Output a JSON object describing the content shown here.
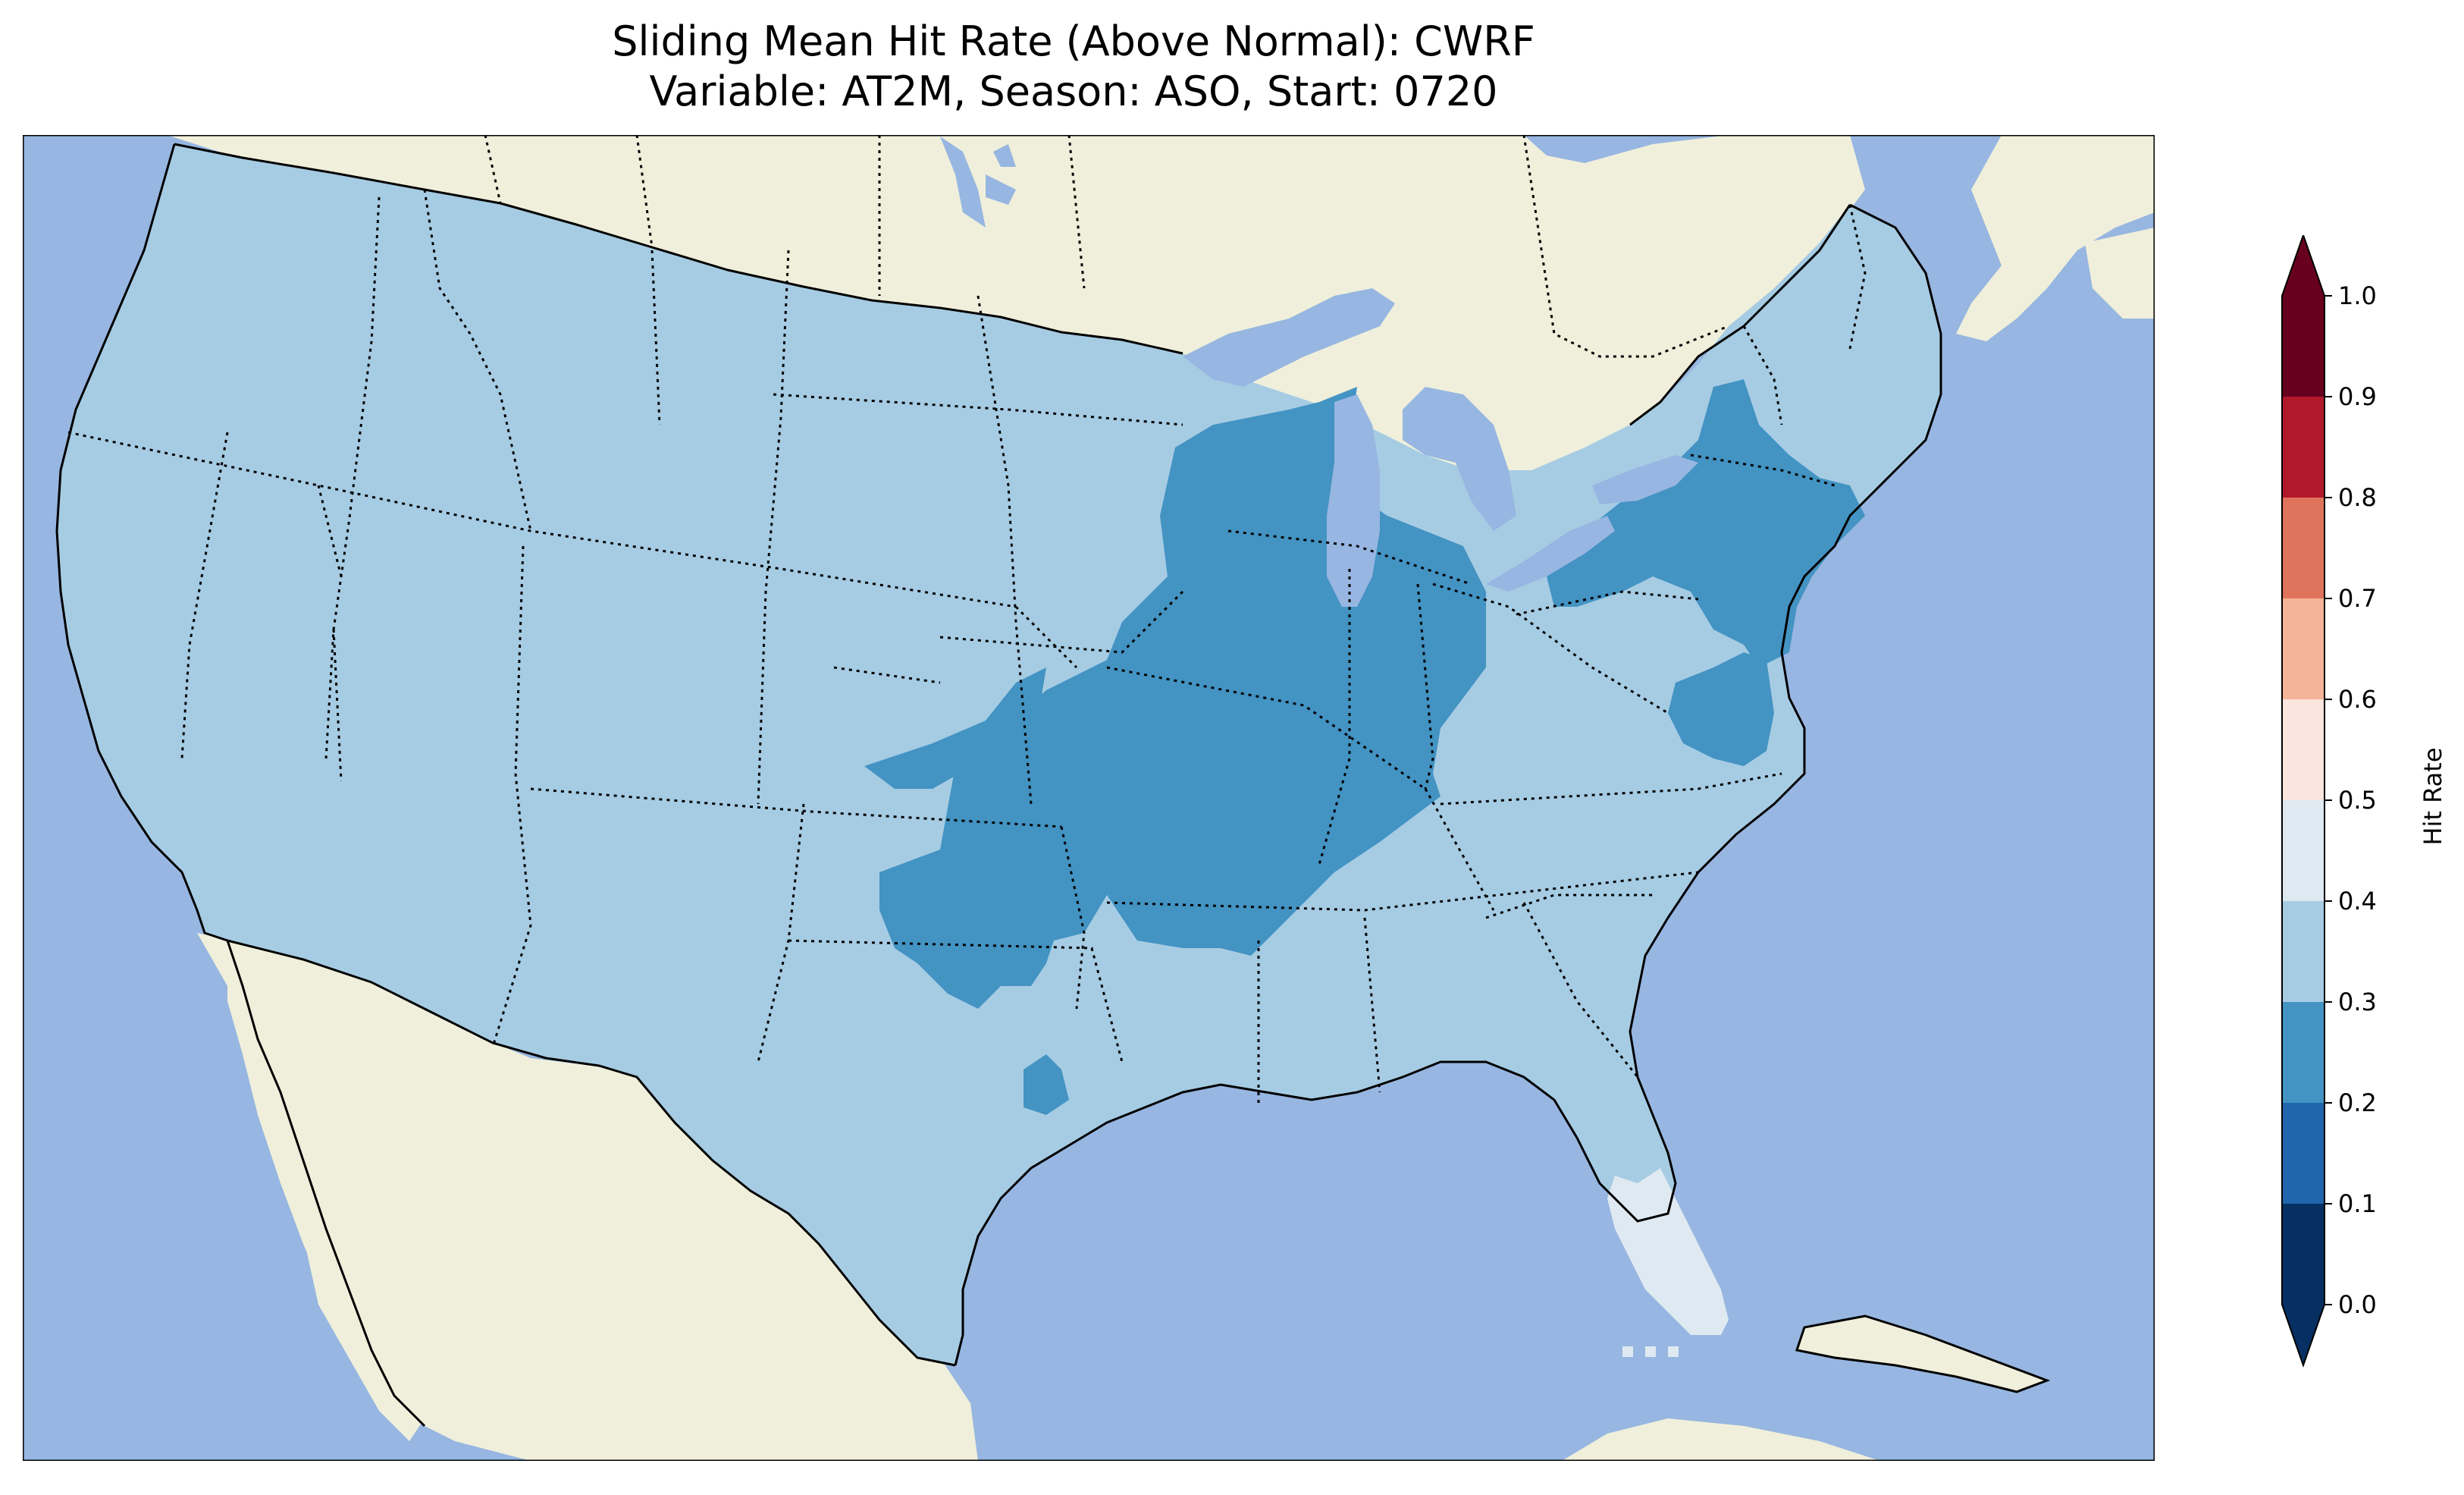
{
  "title": {
    "line1": "Sliding Mean Hit Rate (Above Normal): CWRF",
    "line2": "Variable: AT2M, Season: ASO, Start: 0720"
  },
  "colors": {
    "ocean": "#97b6e1",
    "land": "#efefdb",
    "lakes": "#97b6e1"
  },
  "map_data": {
    "type": "choropleth_grid",
    "region": "Continental United States",
    "dominant_bin": [
      0.3,
      0.4
    ],
    "zones": [
      {
        "name": "Central US (Kansas–Oklahoma–Missouri–Illinois–Indiana)",
        "bin": [
          0.2,
          0.3
        ]
      },
      {
        "name": "Wisconsin–Michigan",
        "bin": [
          0.2,
          0.3
        ]
      },
      {
        "name": "New York–Pennsylvania–New Jersey",
        "bin": [
          0.2,
          0.3
        ]
      },
      {
        "name": "Virginia–Maryland",
        "bin": [
          0.2,
          0.3
        ]
      },
      {
        "name": "Florida peninsula",
        "bin": [
          0.4,
          0.5
        ]
      },
      {
        "name": "Rest of CONUS",
        "bin": [
          0.3,
          0.4
        ]
      }
    ]
  },
  "colorbar": {
    "label": "Hit Rate",
    "ticks": [
      "0.0",
      "0.1",
      "0.2",
      "0.3",
      "0.4",
      "0.5",
      "0.6",
      "0.7",
      "0.8",
      "0.9",
      "1.0"
    ],
    "bins": [
      {
        "range": [
          0.0,
          0.1
        ],
        "color": "#053061"
      },
      {
        "range": [
          0.1,
          0.2
        ],
        "color": "#2166ac"
      },
      {
        "range": [
          0.2,
          0.3
        ],
        "color": "#4393c3"
      },
      {
        "range": [
          0.3,
          0.4
        ],
        "color": "#a6cce3"
      },
      {
        "range": [
          0.4,
          0.5
        ],
        "color": "#dfe9f1"
      },
      {
        "range": [
          0.5,
          0.6
        ],
        "color": "#fae6de"
      },
      {
        "range": [
          0.6,
          0.7
        ],
        "color": "#f4b497"
      },
      {
        "range": [
          0.7,
          0.8
        ],
        "color": "#df735c"
      },
      {
        "range": [
          0.8,
          0.9
        ],
        "color": "#b2182b"
      },
      {
        "range": [
          0.9,
          1.0
        ],
        "color": "#67001f"
      }
    ],
    "extend_low_color": "#053061",
    "extend_high_color": "#67001f"
  }
}
